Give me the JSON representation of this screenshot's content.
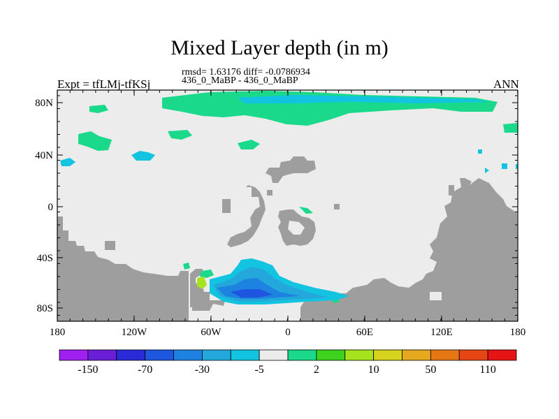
{
  "title": "Mixed Layer depth (in m)",
  "stats_line": "rmsd= 1.63176 diff= -0.0786934",
  "cases_line": "436_0_MaBP - 436_0_MaBP",
  "left_label": "Expt = tfLMj-tfKSj",
  "right_label": "ANN",
  "lat_ticks": [
    "80N",
    "40N",
    "0",
    "40S",
    "80S"
  ],
  "lon_ticks": [
    "180",
    "120W",
    "60W",
    "0",
    "60E",
    "120E",
    "180"
  ],
  "colorbar": {
    "colors": [
      "#a020f0",
      "#6a1fd6",
      "#2a2ad6",
      "#1e56e0",
      "#1e82e0",
      "#24a8dc",
      "#12c4e0",
      "#ececec",
      "#1ad98a",
      "#3cd21e",
      "#a6e21e",
      "#d6d21e",
      "#e6a81e",
      "#e67814",
      "#e64614",
      "#e61414"
    ],
    "labels": [
      "-150",
      "-70",
      "-30",
      "-5",
      "2",
      "10",
      "50",
      "110"
    ]
  },
  "map_colors": {
    "land": "#9e9e9e",
    "neutral_ocean": "#ececec",
    "green": "#1ad98a",
    "cyan": "#12c4e0",
    "light_blue": "#24a8dc",
    "blue": "#1e82e0",
    "dark_blue": "#1e56e0",
    "yellow_green": "#a6e21e"
  }
}
